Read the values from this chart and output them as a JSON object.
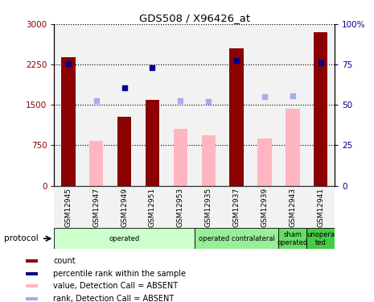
{
  "title": "GDS508 / X96426_at",
  "samples": [
    "GSM12945",
    "GSM12947",
    "GSM12949",
    "GSM12951",
    "GSM12953",
    "GSM12935",
    "GSM12937",
    "GSM12939",
    "GSM12943",
    "GSM12941"
  ],
  "count_values": [
    2380,
    null,
    1280,
    1600,
    null,
    null,
    2550,
    null,
    null,
    2850
  ],
  "count_color": "#8B0000",
  "absent_value_bars": [
    null,
    830,
    null,
    null,
    1060,
    930,
    null,
    880,
    1430,
    null
  ],
  "absent_value_color": "#FFB6C1",
  "percentile_rank_dots": [
    2270,
    null,
    1820,
    2200,
    null,
    null,
    2330,
    null,
    null,
    2280
  ],
  "percentile_rank_color": "#00008B",
  "absent_rank_dots": [
    null,
    1580,
    null,
    null,
    1580,
    1570,
    null,
    1660,
    1670,
    null
  ],
  "absent_rank_color": "#AAAAEE",
  "ylim_left": [
    0,
    3000
  ],
  "ylim_right": [
    0,
    100
  ],
  "yticks_left": [
    0,
    750,
    1500,
    2250,
    3000
  ],
  "yticks_right": [
    0,
    25,
    50,
    75,
    100
  ],
  "ytick_labels_left": [
    "0",
    "750",
    "1500",
    "2250",
    "3000"
  ],
  "ytick_labels_right": [
    "0",
    "25",
    "50",
    "75",
    "100%"
  ],
  "groups": [
    {
      "label": "operated",
      "start": 0,
      "end": 5,
      "color": "#CCFFCC"
    },
    {
      "label": "operated contralateral",
      "start": 5,
      "end": 8,
      "color": "#99EE99"
    },
    {
      "label": "sham\noperated",
      "start": 8,
      "end": 9,
      "color": "#66DD66"
    },
    {
      "label": "unopera\nted",
      "start": 9,
      "end": 10,
      "color": "#44CC44"
    }
  ],
  "col_bg_color": "#CCCCCC",
  "protocol_label": "protocol",
  "legend_items": [
    {
      "label": "count",
      "color": "#8B0000"
    },
    {
      "label": "percentile rank within the sample",
      "color": "#00008B"
    },
    {
      "label": "value, Detection Call = ABSENT",
      "color": "#FFB6C1"
    },
    {
      "label": "rank, Detection Call = ABSENT",
      "color": "#AAAAEE"
    }
  ],
  "bar_width": 0.5
}
